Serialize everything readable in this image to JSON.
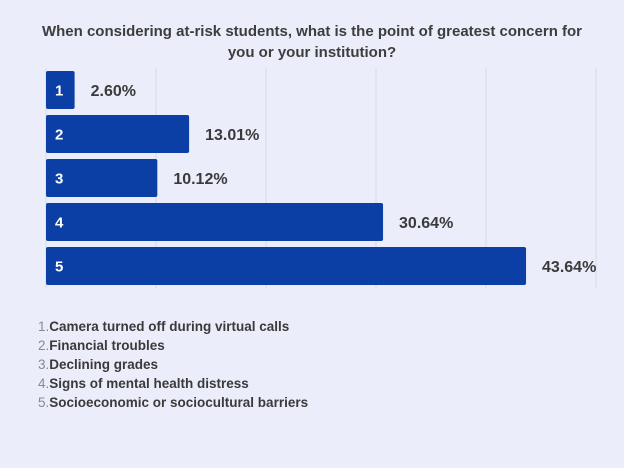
{
  "chart_data": {
    "type": "bar",
    "orientation": "horizontal",
    "title": "When considering at-risk students, what is the point of greatest concern for you or your institution?",
    "categories": [
      "1",
      "2",
      "3",
      "4",
      "5"
    ],
    "values": [
      2.6,
      13.01,
      10.12,
      30.64,
      43.64
    ],
    "value_labels": [
      "2.60%",
      "13.01%",
      "10.12%",
      "30.64%",
      "43.64%"
    ],
    "xlim": [
      0,
      50
    ],
    "grid": true,
    "bar_color": "#0b3fa6",
    "legend": [
      {
        "num": "1.",
        "label": "Camera turned off during virtual calls"
      },
      {
        "num": "2.",
        "label": "Financial troubles"
      },
      {
        "num": "3.",
        "label": "Declining grades"
      },
      {
        "num": "4.",
        "label": "Signs of mental health distress"
      },
      {
        "num": "5.",
        "label": "Socioeconomic or sociocultural barriers"
      }
    ]
  }
}
